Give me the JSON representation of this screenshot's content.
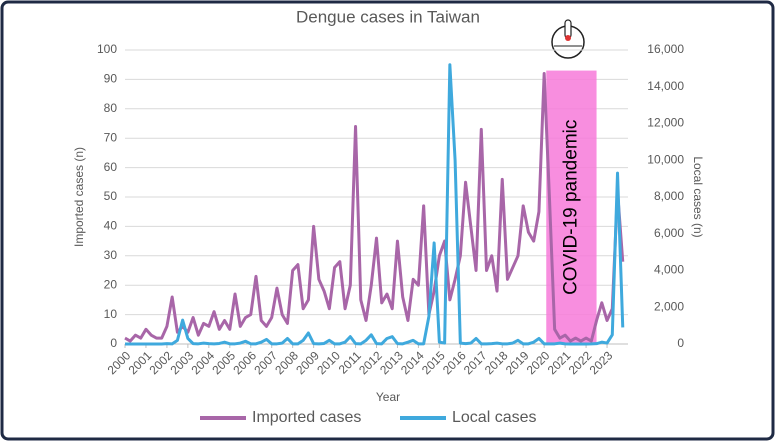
{
  "chart_data": {
    "type": "line",
    "title": "Dengue cases in Taiwan",
    "x_label": "Year",
    "y_label": "Imported cases (n)",
    "y2_label": "Local cases (n)",
    "xlim": [
      2000,
      2024
    ],
    "xticks": [
      2000,
      2001,
      2002,
      2003,
      2004,
      2005,
      2006,
      2007,
      2008,
      2009,
      2010,
      2011,
      2012,
      2013,
      2014,
      2015,
      2016,
      2017,
      2018,
      2019,
      2020,
      2021,
      2022,
      2023
    ],
    "ylim": [
      0,
      100
    ],
    "yticks": [
      0,
      10,
      20,
      30,
      40,
      50,
      60,
      70,
      80,
      90,
      100
    ],
    "y2lim": [
      0,
      16000
    ],
    "y2ticks": [
      0,
      {
        "value": 2000,
        "label": "2,000"
      },
      {
        "value": 4000,
        "label": "4,000"
      },
      {
        "value": 6000,
        "label": "6,000"
      },
      {
        "value": 8000,
        "label": "8,000"
      },
      {
        "value": 10000,
        "label": "10,000"
      },
      {
        "value": 12000,
        "label": "12,000"
      },
      {
        "value": 14000,
        "label": "14,000"
      },
      {
        "value": 16000,
        "label": "16,000"
      }
    ],
    "grid": true,
    "legend": "bottom",
    "x": [
      2000,
      2000.25,
      2000.5,
      2000.75,
      2001,
      2001.25,
      2001.5,
      2001.75,
      2002,
      2002.25,
      2002.5,
      2002.75,
      2003,
      2003.25,
      2003.5,
      2003.75,
      2004,
      2004.25,
      2004.5,
      2004.75,
      2005,
      2005.25,
      2005.5,
      2005.75,
      2006,
      2006.25,
      2006.5,
      2006.75,
      2007,
      2007.25,
      2007.5,
      2007.75,
      2008,
      2008.25,
      2008.5,
      2008.75,
      2009,
      2009.25,
      2009.5,
      2009.75,
      2010,
      2010.25,
      2010.5,
      2010.75,
      2011,
      2011.25,
      2011.5,
      2011.75,
      2012,
      2012.25,
      2012.5,
      2012.75,
      2013,
      2013.25,
      2013.5,
      2013.75,
      2014,
      2014.25,
      2014.5,
      2014.75,
      2015,
      2015.25,
      2015.5,
      2015.75,
      2016,
      2016.25,
      2016.5,
      2016.75,
      2017,
      2017.25,
      2017.5,
      2017.75,
      2018,
      2018.25,
      2018.5,
      2018.75,
      2019,
      2019.25,
      2019.5,
      2019.75,
      2020,
      2020.25,
      2020.5,
      2020.75,
      2021,
      2021.25,
      2021.5,
      2021.75,
      2022,
      2022.25,
      2022.5,
      2022.75,
      2023,
      2023.25,
      2023.5,
      2023.75
    ],
    "series": [
      {
        "name": "Imported cases",
        "color": "#a866a8",
        "values": [
          2,
          1,
          3,
          2,
          5,
          3,
          2,
          2,
          6,
          16,
          4,
          6,
          4,
          9,
          3,
          7,
          6,
          11,
          5,
          8,
          5,
          17,
          6,
          9,
          10,
          23,
          8,
          6,
          9,
          19,
          10,
          7,
          25,
          27,
          12,
          15,
          40,
          22,
          18,
          12,
          26,
          28,
          12,
          20,
          74,
          15,
          8,
          20,
          36,
          14,
          17,
          12,
          35,
          16,
          8,
          22,
          20,
          47,
          10,
          18,
          30,
          35,
          15,
          22,
          30,
          55,
          40,
          25,
          73,
          25,
          30,
          18,
          56,
          22,
          26,
          30,
          47,
          38,
          35,
          45,
          92,
          50,
          5,
          2,
          3,
          1,
          2,
          1,
          2,
          1,
          8,
          14,
          8,
          12,
          52,
          28
        ]
      },
      {
        "name": "Local cases",
        "color": "#3fa9dd",
        "axis": "y2",
        "values": [
          0,
          0,
          0,
          0,
          0,
          0,
          0,
          0,
          20,
          10,
          200,
          1300,
          300,
          20,
          10,
          50,
          20,
          10,
          30,
          100,
          10,
          10,
          50,
          150,
          10,
          10,
          100,
          250,
          10,
          10,
          50,
          300,
          10,
          10,
          200,
          600,
          20,
          10,
          30,
          200,
          10,
          10,
          100,
          400,
          20,
          10,
          200,
          500,
          20,
          10,
          300,
          400,
          20,
          10,
          100,
          200,
          10,
          10,
          1500,
          5500,
          100,
          50,
          15200,
          10000,
          50,
          20,
          50,
          300,
          10,
          10,
          20,
          50,
          10,
          10,
          50,
          200,
          10,
          10,
          100,
          300,
          10,
          5,
          10,
          50,
          5,
          0,
          0,
          0,
          0,
          5,
          20,
          100,
          50,
          500,
          9300,
          900
        ]
      }
    ],
    "annotations": [
      {
        "text": "COVID-19 pandemic",
        "x0": 2020.1,
        "x1": 2022.5,
        "y": 93,
        "color": "#f77ad9"
      }
    ]
  }
}
